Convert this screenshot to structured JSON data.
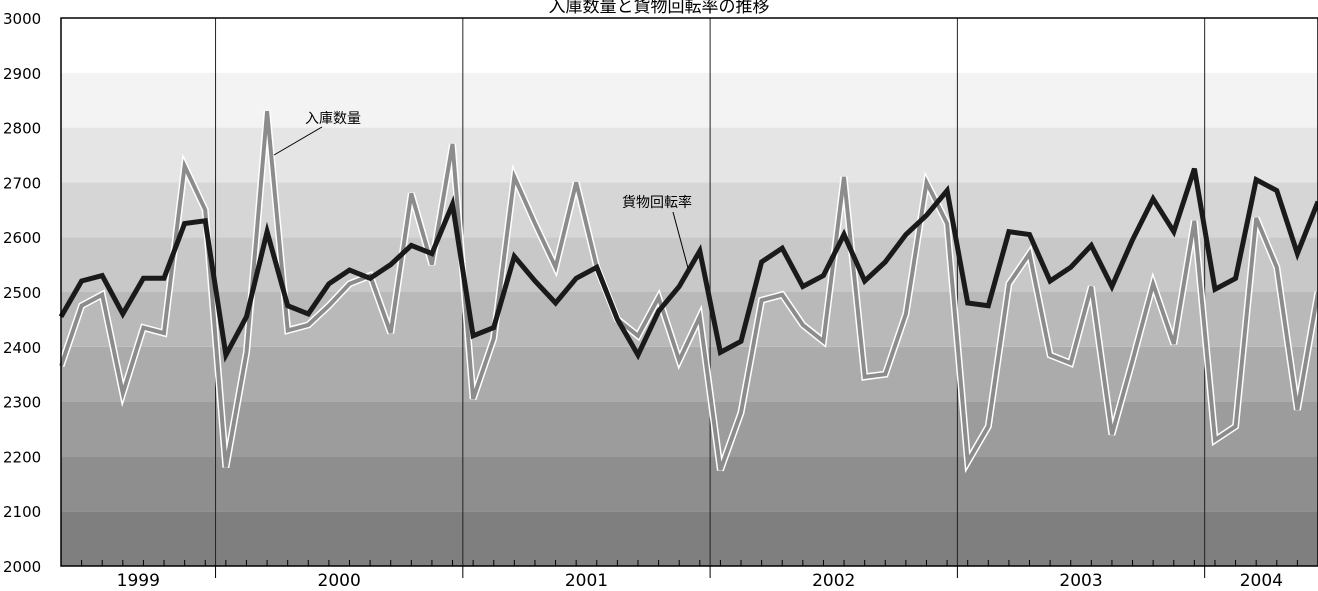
{
  "chart_data": {
    "type": "line",
    "title": "入庫数量と貨物回転率の推移",
    "ylim": [
      2000,
      3000
    ],
    "yticks": [
      2000,
      2100,
      2200,
      2300,
      2400,
      2500,
      2600,
      2700,
      2800,
      2900,
      3000
    ],
    "years": [
      "1999",
      "2000",
      "2001",
      "2002",
      "2003",
      "2004"
    ],
    "year_month_counts": [
      8,
      12,
      12,
      12,
      12,
      5
    ],
    "x_start": "1999-05",
    "annotations": [
      "入庫数量",
      "貨物回転率"
    ],
    "colors": {
      "入庫数量": "#8c8c8c",
      "貨物回転率": "#1a1a1a"
    },
    "grid": "horizontal bands, vertical year separators",
    "series": [
      {
        "name": "入庫数量",
        "values": [
          2365,
          2475,
          2495,
          2315,
          2435,
          2425,
          2730,
          2650,
          2180,
          2390,
          2830,
          2430,
          2440,
          2475,
          2515,
          2530,
          2425,
          2680,
          2550,
          2770,
          2305,
          2415,
          2710,
          2625,
          2545,
          2700,
          2545,
          2450,
          2420,
          2490,
          2375,
          2455,
          2175,
          2280,
          2485,
          2495,
          2440,
          2410,
          2710,
          2345,
          2350,
          2460,
          2700,
          2625,
          2190,
          2255,
          2515,
          2570,
          2385,
          2370,
          2510,
          2240,
          2375,
          2515,
          2405,
          2630,
          2230,
          2255,
          2635,
          2545,
          2285,
          2500
        ]
      },
      {
        "name": "貨物回転率",
        "values": [
          2455,
          2520,
          2530,
          2460,
          2525,
          2525,
          2625,
          2630,
          2385,
          2455,
          2610,
          2475,
          2460,
          2515,
          2540,
          2525,
          2550,
          2585,
          2570,
          2660,
          2420,
          2435,
          2565,
          2520,
          2480,
          2525,
          2545,
          2450,
          2385,
          2465,
          2510,
          2575,
          2390,
          2410,
          2555,
          2580,
          2510,
          2530,
          2605,
          2520,
          2555,
          2605,
          2640,
          2685,
          2480,
          2475,
          2610,
          2605,
          2520,
          2545,
          2585,
          2510,
          2595,
          2670,
          2610,
          2725,
          2505,
          2525,
          2705,
          2685,
          2570,
          2665
        ]
      }
    ]
  }
}
